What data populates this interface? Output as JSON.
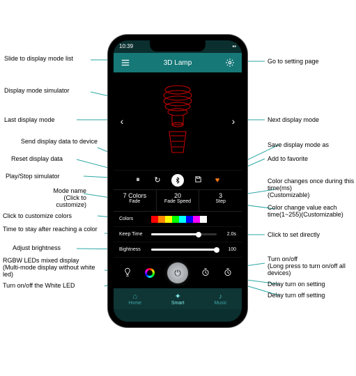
{
  "statusbar": {
    "time": "10:39"
  },
  "appbar": {
    "title": "3D Lamp"
  },
  "mode": {
    "colors_count": "7 Colors",
    "colors_sub": "Fade",
    "speed_val": "20",
    "speed_sub": "Fade Speed",
    "step_val": "3",
    "step_sub": "Step"
  },
  "rows": {
    "colors_label": "Colors",
    "keep_label": "Keep Time",
    "keep_val": "2.0s",
    "bright_label": "Bightness",
    "bright_val": "100"
  },
  "swatches": [
    "#ff0000",
    "#ff8800",
    "#ffff00",
    "#00ff00",
    "#00ffff",
    "#0000ff",
    "#ff00ff",
    "#ffffff"
  ],
  "slider": {
    "keep_pct": 72,
    "bright_pct": 100
  },
  "tabs": {
    "t1": "Home",
    "t2": "Smart",
    "t3": "Music"
  },
  "colors": {
    "teal": "#167877",
    "line": "#2aa6a3",
    "lamp": "#d00000"
  },
  "callouts": {
    "l1": "Slide to display mode list",
    "l2": "Display mode simulator",
    "l3": "Last display mode",
    "l4": "Send display data to device",
    "l5": "Reset display data",
    "l6": "Play/Stop simulator",
    "l7": "Mode name",
    "l7s": "(Click to customize)",
    "l8": "Click to customize colors",
    "l9": "Time to stay after reaching a color",
    "l10": "Adjust brightness",
    "l11": "RGBW LEDs mixed display",
    "l11s": "(Multi-mode display without white led)",
    "l12": "Turn on/off  the White LED",
    "r1": "Go to setting page",
    "r2": "Next display mode",
    "r3": "Save  display mode as",
    "r4": "Add to favorite",
    "r5": "Color changes once during this time(ms)",
    "r5s": "(Customizable)",
    "r6": "Color change value each time(1~255)(Customizable)",
    "r7": "Click to set directly",
    "r8": "Turn on/off",
    "r8s": "(Long press to turn on/off  all devices)",
    "r9": "Delay turn on setting",
    "r10": "Delay turn off setting"
  }
}
